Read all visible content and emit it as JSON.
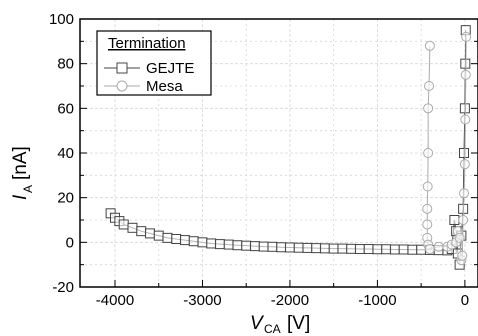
{
  "chart_data": {
    "type": "scatter",
    "title": "",
    "xlabel": "V",
    "xlabel_sub": "CA",
    "xlabel_unit": "[V]",
    "ylabel": "I",
    "ylabel_sub": "A",
    "ylabel_unit": "[nA]",
    "xlim": [
      -4400,
      150
    ],
    "ylim": [
      -20,
      100
    ],
    "x_ticks": [
      -4000,
      -3000,
      -2000,
      -1000,
      0
    ],
    "y_ticks": [
      -20,
      0,
      20,
      40,
      60,
      80,
      100
    ],
    "grid": true,
    "legend": {
      "title": "Termination",
      "position": "top-left"
    },
    "series": [
      {
        "name": "GEJTE",
        "marker": "square",
        "color": "#444444",
        "points": [
          [
            -4050,
            13
          ],
          [
            -4000,
            11
          ],
          [
            -3950,
            9.5
          ],
          [
            -3900,
            8
          ],
          [
            -3800,
            6.5
          ],
          [
            -3700,
            5
          ],
          [
            -3600,
            4
          ],
          [
            -3500,
            3
          ],
          [
            -3400,
            2
          ],
          [
            -3300,
            1.5
          ],
          [
            -3200,
            1
          ],
          [
            -3100,
            0.5
          ],
          [
            -3000,
            0
          ],
          [
            -2900,
            -0.5
          ],
          [
            -2800,
            -0.8
          ],
          [
            -2700,
            -1
          ],
          [
            -2600,
            -1.3
          ],
          [
            -2500,
            -1.5
          ],
          [
            -2400,
            -1.7
          ],
          [
            -2300,
            -1.9
          ],
          [
            -2200,
            -2
          ],
          [
            -2100,
            -2.2
          ],
          [
            -2000,
            -2.3
          ],
          [
            -1900,
            -2.4
          ],
          [
            -1800,
            -2.5
          ],
          [
            -1700,
            -2.6
          ],
          [
            -1600,
            -2.7
          ],
          [
            -1500,
            -2.8
          ],
          [
            -1400,
            -2.8
          ],
          [
            -1300,
            -2.9
          ],
          [
            -1200,
            -3
          ],
          [
            -1100,
            -3
          ],
          [
            -1000,
            -3.1
          ],
          [
            -900,
            -3.1
          ],
          [
            -800,
            -3.2
          ],
          [
            -700,
            -3.2
          ],
          [
            -600,
            -3.3
          ],
          [
            -500,
            -3.3
          ],
          [
            -400,
            -3.4
          ],
          [
            -300,
            -3.5
          ],
          [
            -200,
            -3.6
          ],
          [
            -150,
            -3
          ],
          [
            -120,
            10
          ],
          [
            -100,
            5
          ],
          [
            -80,
            -5
          ],
          [
            -60,
            -10
          ],
          [
            -40,
            3
          ],
          [
            -20,
            15
          ],
          [
            -10,
            40
          ],
          [
            0,
            60
          ],
          [
            5,
            80
          ],
          [
            10,
            95
          ]
        ]
      },
      {
        "name": "Mesa",
        "marker": "circle",
        "color": "#aaaaaa",
        "points": [
          [
            -400,
            88
          ],
          [
            -410,
            70
          ],
          [
            -420,
            60
          ],
          [
            -420,
            40
          ],
          [
            -425,
            25
          ],
          [
            -430,
            15
          ],
          [
            -430,
            8
          ],
          [
            -430,
            2
          ],
          [
            -420,
            -1
          ],
          [
            -400,
            -3
          ],
          [
            -300,
            -2
          ],
          [
            -200,
            -2
          ],
          [
            -150,
            -1
          ],
          [
            -100,
            0
          ],
          [
            -80,
            5
          ],
          [
            -60,
            2
          ],
          [
            -40,
            -8
          ],
          [
            -30,
            -6
          ],
          [
            -20,
            10
          ],
          [
            -10,
            22
          ],
          [
            0,
            35
          ],
          [
            5,
            55
          ],
          [
            10,
            75
          ],
          [
            15,
            92
          ]
        ]
      }
    ]
  }
}
